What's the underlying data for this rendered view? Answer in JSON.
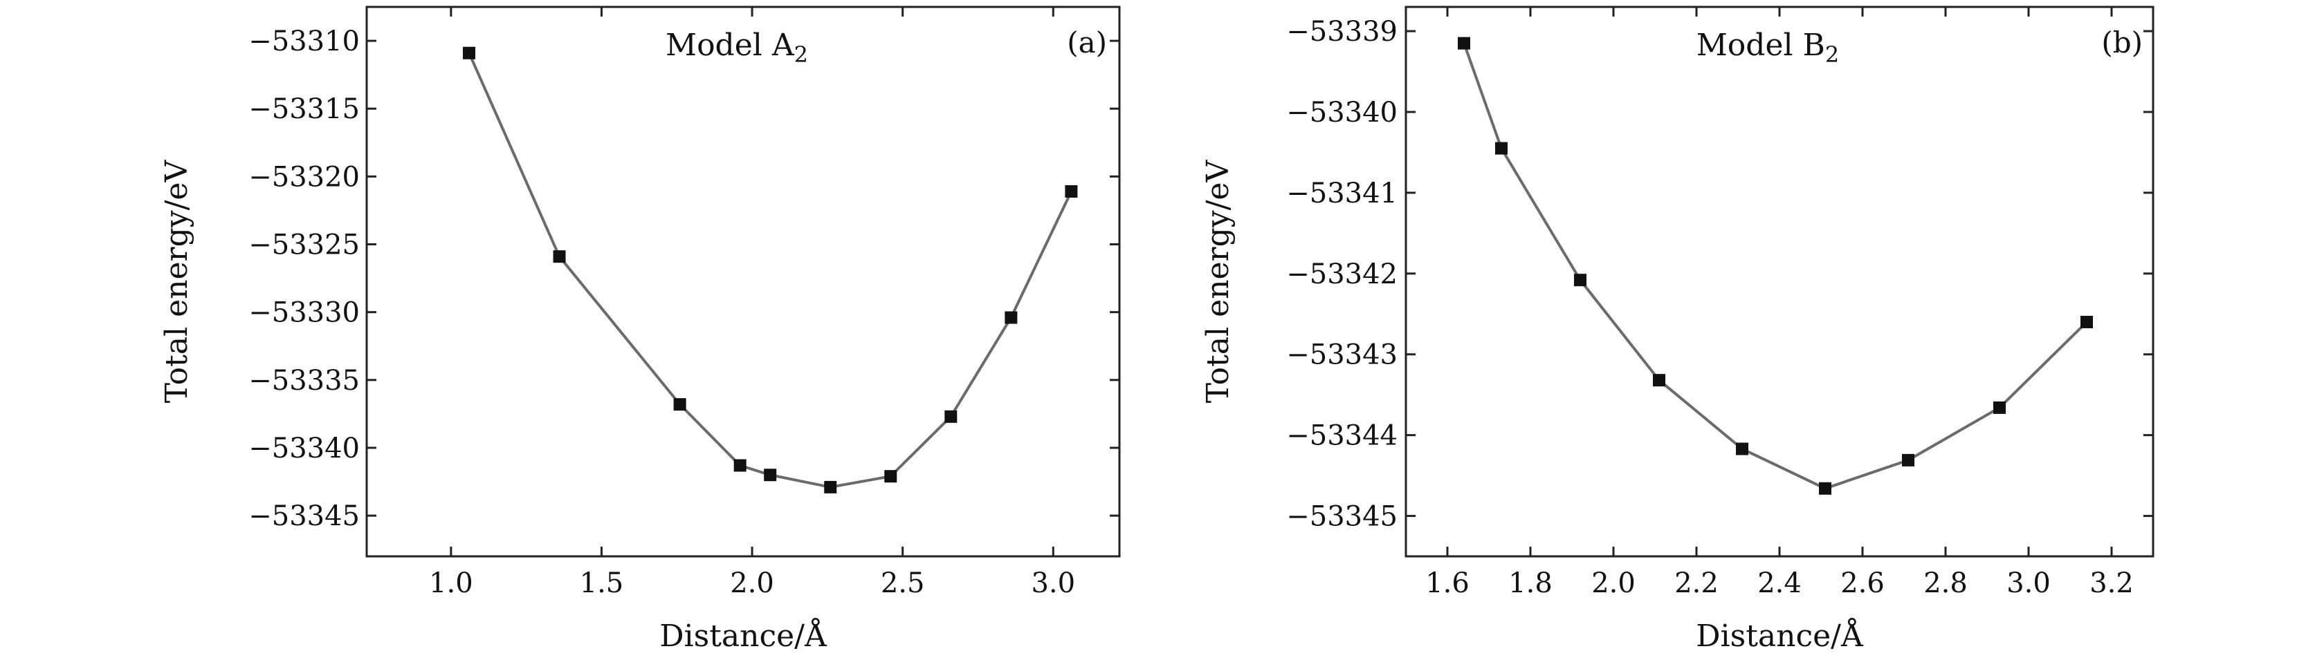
{
  "colors": {
    "line": "#6b6b6b",
    "marker": "#111111",
    "axis": "#222222"
  },
  "chart_data": [
    {
      "type": "line",
      "panel_tag": "(a)",
      "title": "Model A",
      "title_subscript": "2",
      "xlabel": "Distance/Å",
      "ylabel": "Total energy/eV",
      "xlim": [
        0.72,
        3.22
      ],
      "ylim": [
        -53348,
        -53307.5
      ],
      "xticks": [
        1.0,
        1.5,
        2.0,
        2.5,
        3.0
      ],
      "xtick_labels": [
        "1.0",
        "1.5",
        "2.0",
        "2.5",
        "3.0"
      ],
      "yticks": [
        -53310,
        -53315,
        -53320,
        -53325,
        -53330,
        -53335,
        -53340,
        -53345
      ],
      "ytick_labels": [
        "−53310",
        "−53315",
        "−53320",
        "−53325",
        "−53330",
        "−53335",
        "−53340",
        "−53345"
      ],
      "grid": false,
      "series": [
        {
          "x": [
            1.06,
            1.36,
            1.76,
            1.96,
            2.06,
            2.26,
            2.46,
            2.66,
            2.86,
            3.06
          ],
          "y": [
            -53310.9,
            -53325.9,
            -53336.8,
            -53341.3,
            -53342.0,
            -53342.9,
            -53342.1,
            -53337.7,
            -53330.4,
            -53321.1
          ]
        }
      ]
    },
    {
      "type": "line",
      "panel_tag": "(b)",
      "title": "Model B",
      "title_subscript": "2",
      "xlabel": "Distance/Å",
      "ylabel": "Total energy/eV",
      "xlim": [
        1.5,
        3.3
      ],
      "ylim": [
        -53345.5,
        -53338.7
      ],
      "xticks": [
        1.6,
        1.8,
        2.0,
        2.2,
        2.4,
        2.6,
        2.8,
        3.0,
        3.2
      ],
      "xtick_labels": [
        "1.6",
        "1.8",
        "2.0",
        "2.2",
        "2.4",
        "2.6",
        "2.8",
        "3.0",
        "3.2"
      ],
      "yticks": [
        -53339,
        -53340,
        -53341,
        -53342,
        -53343,
        -53344,
        -53345
      ],
      "ytick_labels": [
        "−53339",
        "−53340",
        "−53341",
        "−53342",
        "−53343",
        "−53344",
        "−53345"
      ],
      "grid": false,
      "series": [
        {
          "x": [
            1.64,
            1.73,
            1.92,
            2.11,
            2.31,
            2.51,
            2.71,
            2.93,
            3.14
          ],
          "y": [
            -53339.15,
            -53340.45,
            -53342.08,
            -53343.32,
            -53344.17,
            -53344.66,
            -53344.31,
            -53343.66,
            -53342.6
          ]
        }
      ]
    }
  ]
}
